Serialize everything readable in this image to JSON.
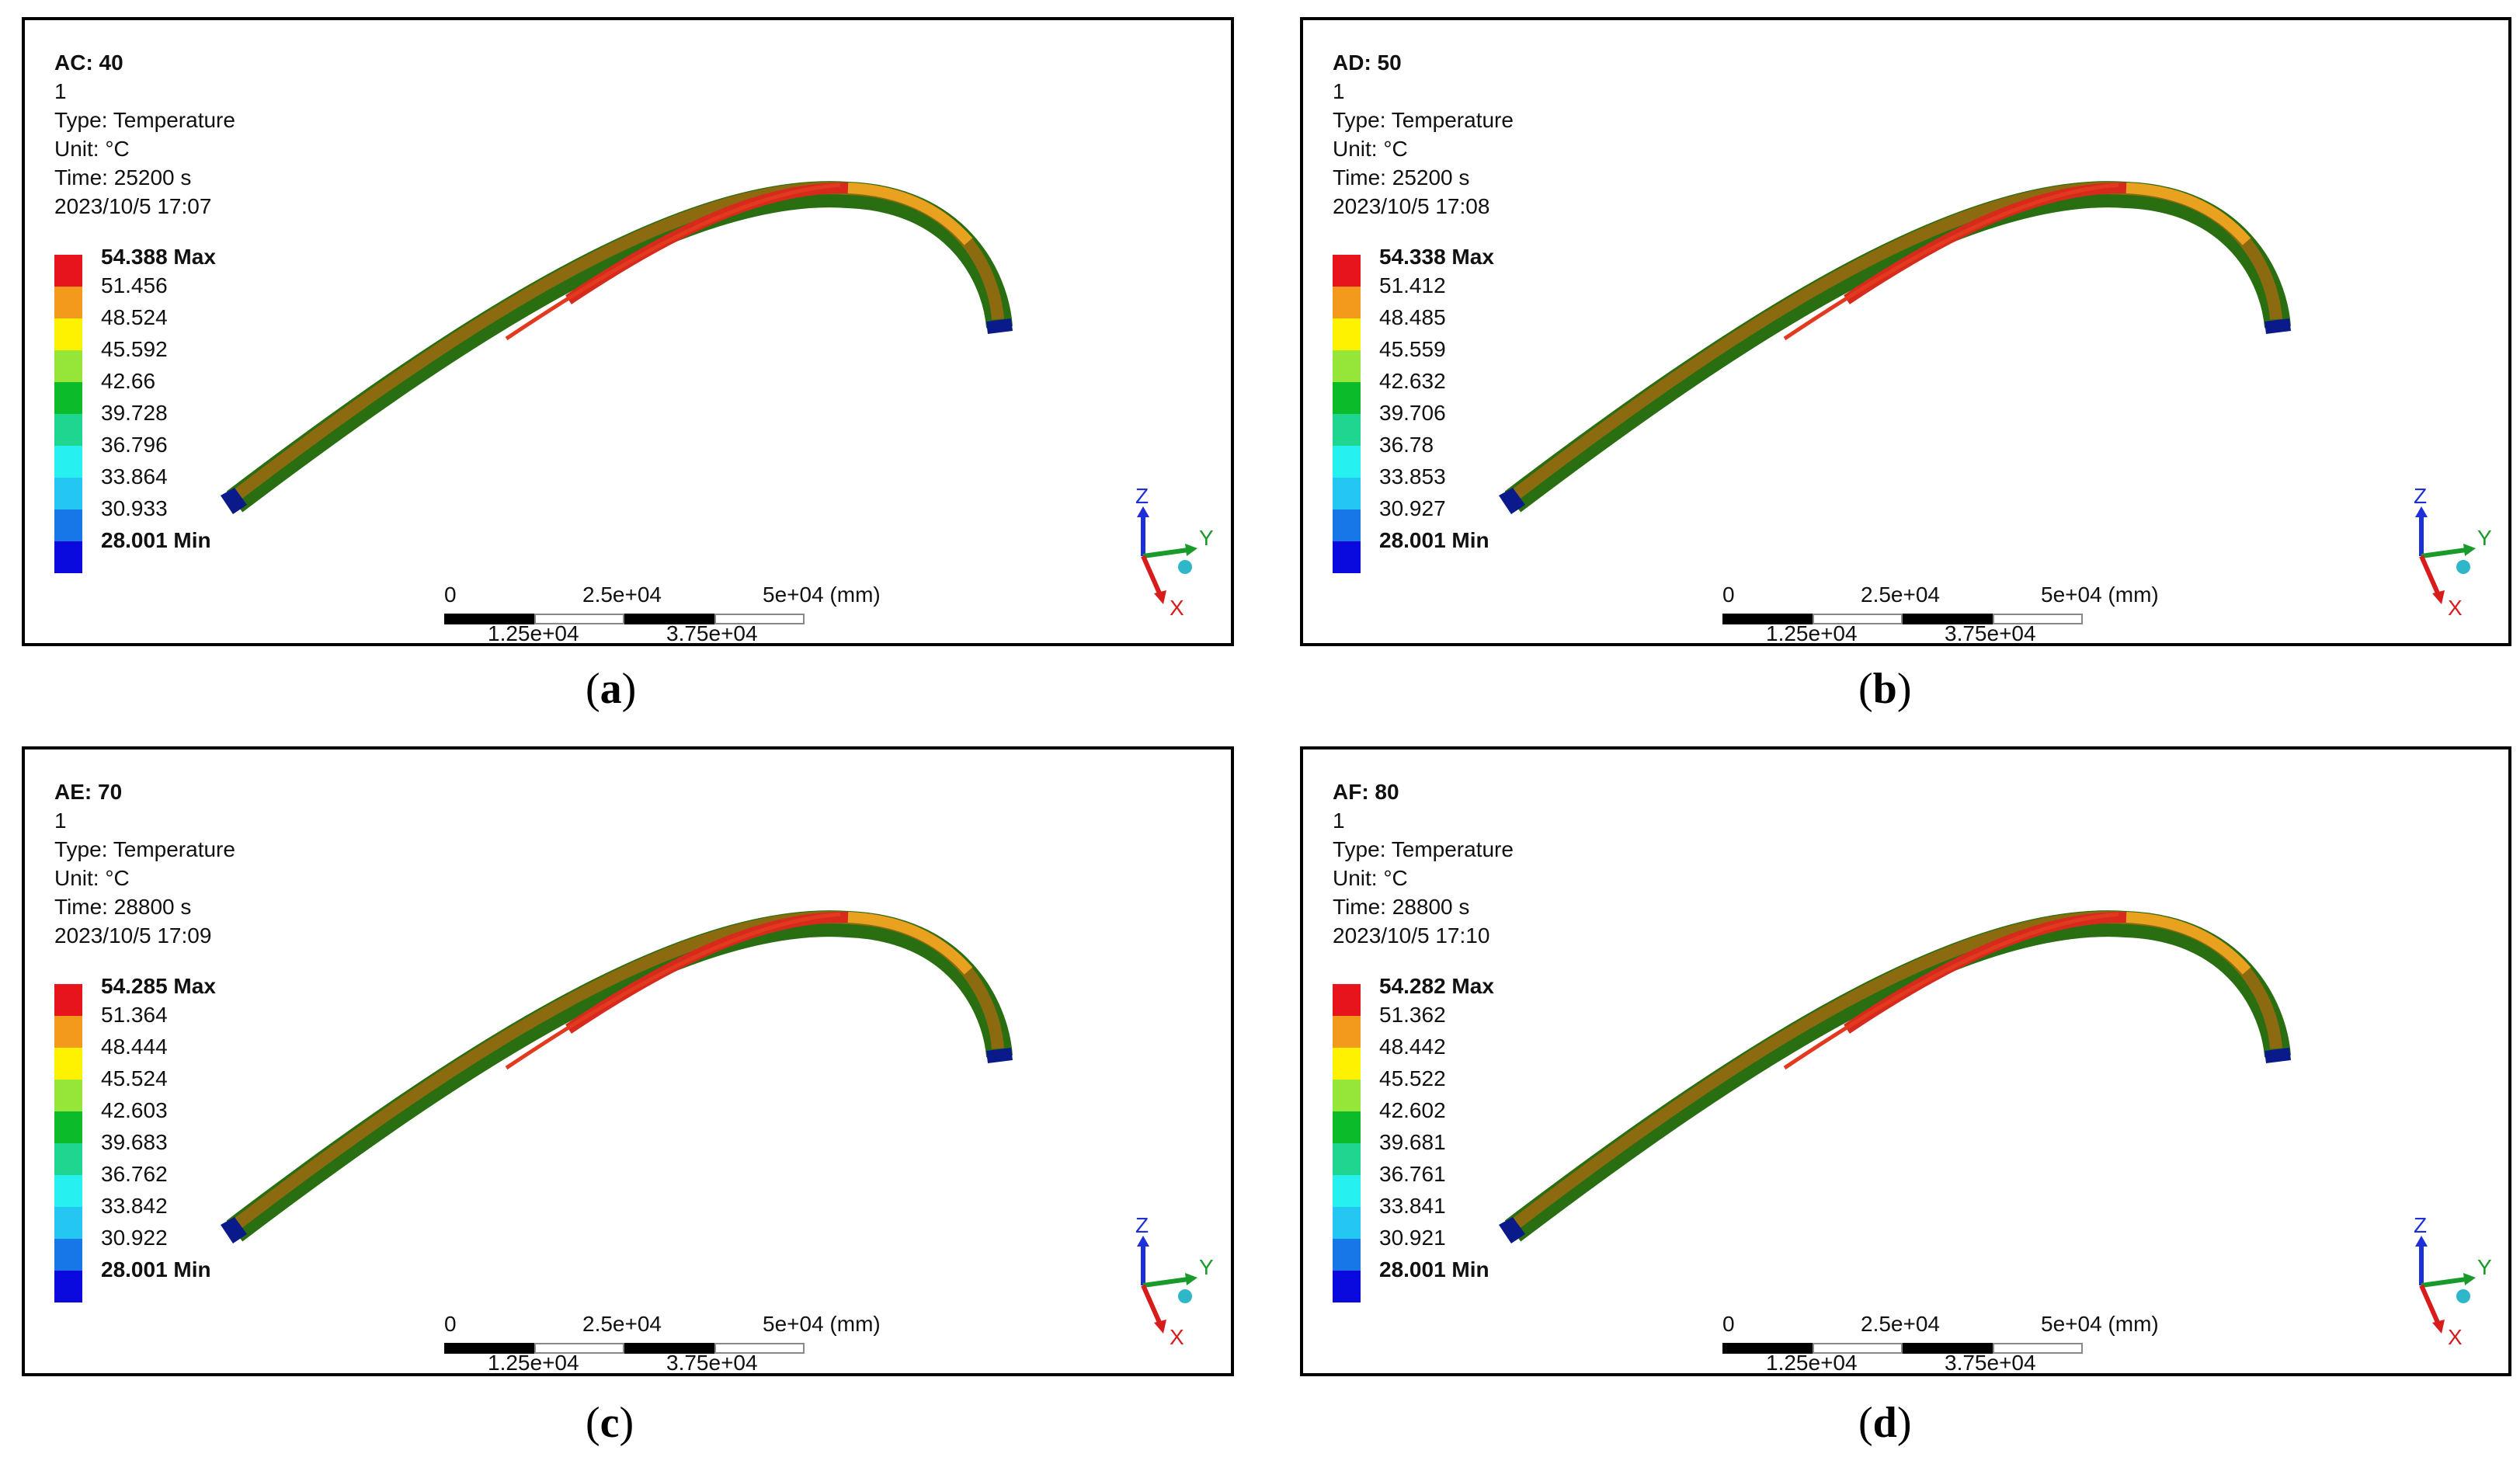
{
  "panels": [
    {
      "id": "a",
      "title": "AC: 40",
      "step": "1",
      "type": "Type: Temperature",
      "unit": "Unit: °C",
      "time": "Time: 25200 s",
      "date": "2023/10/5 17:07",
      "legend": [
        "54.388 Max",
        "51.456",
        "48.524",
        "45.592",
        "42.66",
        "39.728",
        "36.796",
        "33.864",
        "30.933",
        "28.001 Min"
      ],
      "caption_letter": "a"
    },
    {
      "id": "b",
      "title": "AD: 50",
      "step": "1",
      "type": "Type: Temperature",
      "unit": "Unit: °C",
      "time": "Time: 25200 s",
      "date": "2023/10/5 17:08",
      "legend": [
        "54.338 Max",
        "51.412",
        "48.485",
        "45.559",
        "42.632",
        "39.706",
        "36.78",
        "33.853",
        "30.927",
        "28.001 Min"
      ],
      "caption_letter": "b"
    },
    {
      "id": "c",
      "title": "AE: 70",
      "step": "1",
      "type": "Type: Temperature",
      "unit": "Unit: °C",
      "time": "Time: 28800 s",
      "date": "2023/10/5 17:09",
      "legend": [
        "54.285 Max",
        "51.364",
        "48.444",
        "45.524",
        "42.603",
        "39.683",
        "36.762",
        "33.842",
        "30.922",
        "28.001 Min"
      ],
      "caption_letter": "c"
    },
    {
      "id": "d",
      "title": "AF: 80",
      "step": "1",
      "type": "Type: Temperature",
      "unit": "Unit: °C",
      "time": "Time: 28800 s",
      "date": "2023/10/5 17:10",
      "legend": [
        "54.282 Max",
        "51.362",
        "48.442",
        "45.522",
        "42.602",
        "39.681",
        "36.761",
        "33.841",
        "30.921",
        "28.001 Min"
      ],
      "caption_letter": "d"
    }
  ],
  "legend_colors": [
    "#e8141c",
    "#f39a1c",
    "#fff200",
    "#96e63a",
    "#0bbb29",
    "#1ed68f",
    "#27f0f0",
    "#24c7f2",
    "#1777e8",
    "#0a0adf"
  ],
  "scale": {
    "top_labels": [
      "0",
      "2.5e+04",
      "5e+04 (mm)"
    ],
    "bottom_labels": [
      "1.25e+04",
      "3.75e+04"
    ]
  },
  "axes": {
    "z": "Z",
    "y": "Y",
    "x": "X"
  },
  "model_colors": {
    "hot": "#d8291d",
    "warm": "#e8a21f",
    "mid": "#8c6a10",
    "base": "#2a6e12",
    "end": "#0b1a8a"
  }
}
